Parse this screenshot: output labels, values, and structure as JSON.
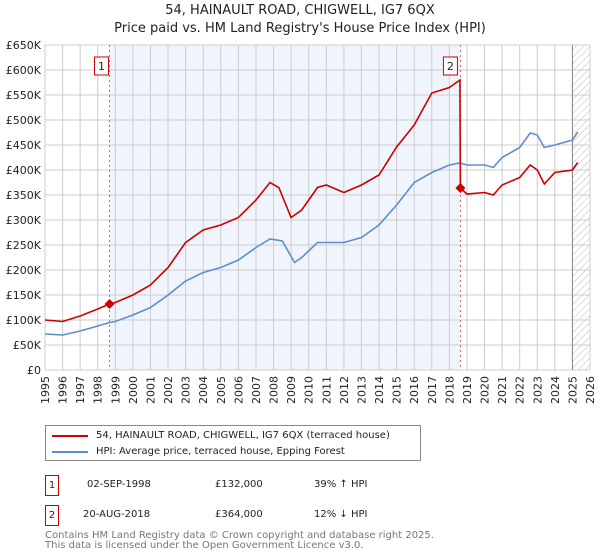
{
  "title": "54, HAINAULT ROAD, CHIGWELL, IG7 6QX",
  "subtitle": "Price paid vs. HM Land Registry's House Price Index (HPI)",
  "chart_data": {
    "type": "line",
    "xlim": [
      1995,
      2026
    ],
    "ylim": [
      0,
      650000
    ],
    "x_ticks": [
      "1995",
      "1996",
      "1997",
      "1998",
      "1999",
      "2000",
      "2001",
      "2002",
      "2003",
      "2004",
      "2005",
      "2006",
      "2007",
      "2008",
      "2009",
      "2010",
      "2011",
      "2012",
      "2013",
      "2014",
      "2015",
      "2016",
      "2017",
      "2018",
      "2019",
      "2020",
      "2021",
      "2022",
      "2023",
      "2024",
      "2025",
      "2026"
    ],
    "y_ticks": [
      {
        "v": 0,
        "label": "£0"
      },
      {
        "v": 50000,
        "label": "£50K"
      },
      {
        "v": 100000,
        "label": "£100K"
      },
      {
        "v": 150000,
        "label": "£150K"
      },
      {
        "v": 200000,
        "label": "£200K"
      },
      {
        "v": 250000,
        "label": "£250K"
      },
      {
        "v": 300000,
        "label": "£300K"
      },
      {
        "v": 350000,
        "label": "£350K"
      },
      {
        "v": 400000,
        "label": "£400K"
      },
      {
        "v": 450000,
        "label": "£450K"
      },
      {
        "v": 500000,
        "label": "£500K"
      },
      {
        "v": 550000,
        "label": "£550K"
      },
      {
        "v": 600000,
        "label": "£600K"
      },
      {
        "v": 650000,
        "label": "£650K"
      }
    ],
    "grid": true,
    "series": [
      {
        "name": "54, HAINAULT ROAD, CHIGWELL, IG7 6QX (terraced house)",
        "color": "#cc0000",
        "x": [
          1995,
          1996,
          1997,
          1998,
          1998.67,
          1999,
          2000,
          2001,
          2002,
          2003,
          2004,
          2005,
          2006,
          2007,
          2007.8,
          2008.3,
          2009,
          2009.6,
          2010.5,
          2011,
          2012,
          2013,
          2014,
          2015,
          2016,
          2017,
          2018,
          2018.6,
          2018.63,
          2019,
          2020,
          2020.5,
          2021,
          2022,
          2022.6,
          2023,
          2023.4,
          2024,
          2025,
          2025.3
        ],
        "y": [
          100000,
          97000,
          108000,
          122000,
          132000,
          135000,
          150000,
          170000,
          205000,
          255000,
          280000,
          290000,
          305000,
          340000,
          375000,
          365000,
          305000,
          320000,
          365000,
          370000,
          355000,
          370000,
          390000,
          446000,
          490000,
          554000,
          565000,
          580000,
          364000,
          352000,
          355000,
          350000,
          370000,
          385000,
          410000,
          400000,
          372000,
          395000,
          400000,
          415000
        ]
      },
      {
        "name": "HPI: Average price, terraced house, Epping Forest",
        "color": "#5b8fd0",
        "x": [
          1995,
          1996,
          1997,
          1998,
          1998.67,
          1999,
          2000,
          2001,
          2002,
          2003,
          2004,
          2005,
          2006,
          2007,
          2007.8,
          2008.5,
          2009.2,
          2009.6,
          2010.5,
          2011,
          2012,
          2013,
          2014,
          2015,
          2016,
          2017,
          2018,
          2018.6,
          2019,
          2020,
          2020.5,
          2021,
          2022,
          2022.6,
          2023,
          2023.4,
          2024,
          2025,
          2025.3
        ],
        "y": [
          72000,
          70000,
          78000,
          88000,
          95000,
          97000,
          110000,
          125000,
          150000,
          178000,
          195000,
          205000,
          220000,
          245000,
          262000,
          258000,
          215000,
          225000,
          255000,
          255000,
          255000,
          265000,
          290000,
          330000,
          375000,
          395000,
          410000,
          414000,
          410000,
          410000,
          405000,
          425000,
          445000,
          474000,
          470000,
          445000,
          450000,
          460000,
          476000
        ]
      }
    ],
    "sales": [
      {
        "label": "1",
        "x": 1998.67,
        "y": 132000
      },
      {
        "label": "2",
        "x": 2018.63,
        "y": 364000
      }
    ],
    "legend_position": "below"
  },
  "transactions": [
    {
      "num": "1",
      "date": "02-SEP-1998",
      "price": "£132,000",
      "hpi": "39% ↑ HPI"
    },
    {
      "num": "2",
      "date": "20-AUG-2018",
      "price": "£364,000",
      "hpi": "12% ↓ HPI"
    }
  ],
  "footer": [
    "Contains HM Land Registry data © Crown copyright and database right 2025.",
    "This data is licensed under the Open Government Licence v3.0."
  ]
}
